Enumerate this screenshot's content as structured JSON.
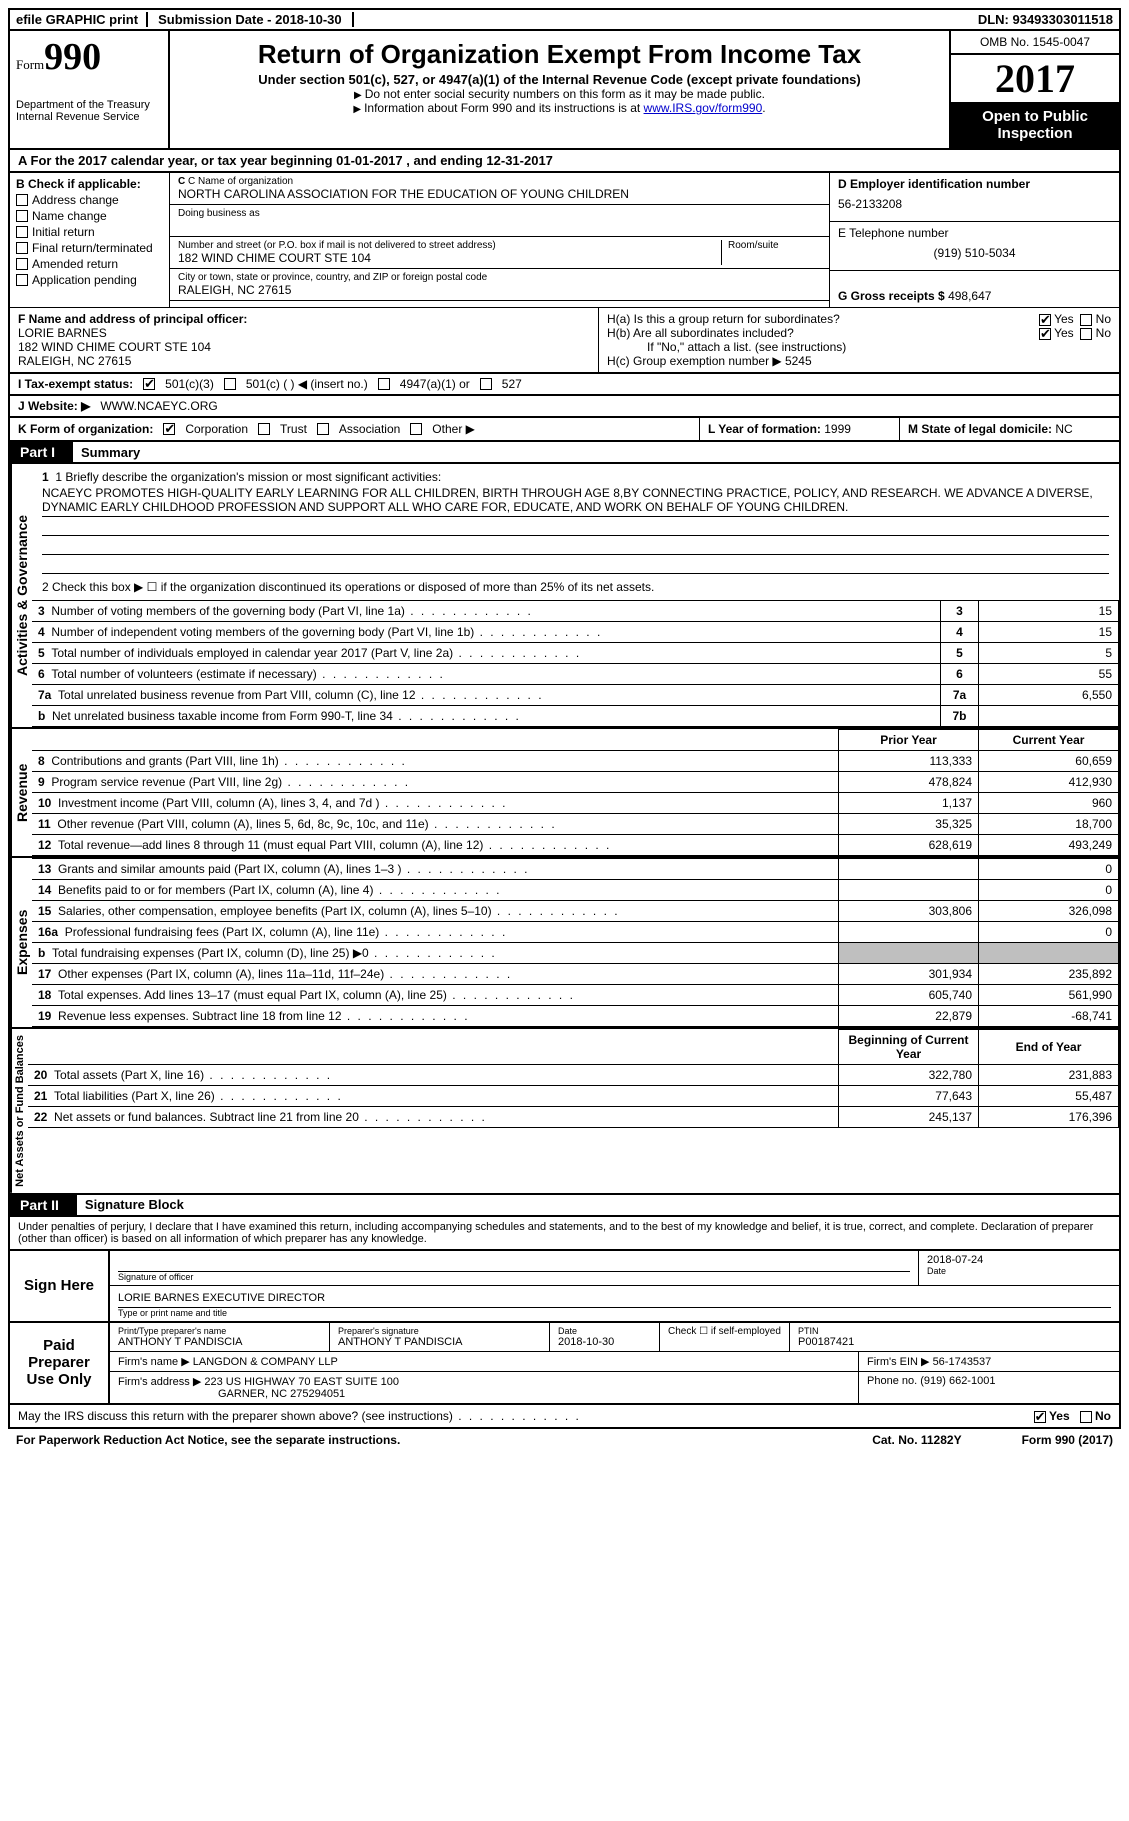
{
  "colors": {
    "black": "#000000",
    "white": "#ffffff",
    "grey": "#bfbfbf",
    "link": "#0000cc"
  },
  "topbar": {
    "efile": "efile GRAPHIC print",
    "submission_label": "Submission Date - ",
    "submission_date": "2018-10-30",
    "dln_label": "DLN: ",
    "dln": "93493303011518"
  },
  "header": {
    "form_label": "Form",
    "form_number": "990",
    "dept1": "Department of the Treasury",
    "dept2": "Internal Revenue Service",
    "title": "Return of Organization Exempt From Income Tax",
    "subtitle": "Under section 501(c), 527, or 4947(a)(1) of the Internal Revenue Code (except private foundations)",
    "note1": "Do not enter social security numbers on this form as it may be made public.",
    "note2_pre": "Information about Form 990 and its instructions is at ",
    "note2_link": "www.IRS.gov/form990",
    "omb": "OMB No. 1545-0047",
    "year": "2017",
    "inspection1": "Open to Public",
    "inspection2": "Inspection"
  },
  "section_a": "A  For the 2017 calendar year, or tax year beginning 01-01-2017   , and ending 12-31-2017",
  "col_b": {
    "title": "B Check if applicable:",
    "items": [
      "Address change",
      "Name change",
      "Initial return",
      "Final return/terminated",
      "Amended return",
      "Application pending"
    ]
  },
  "col_c": {
    "name_label": "C Name of organization",
    "name": "NORTH CAROLINA ASSOCIATION FOR THE EDUCATION OF YOUNG CHILDREN",
    "dba_label": "Doing business as",
    "street_label": "Number and street (or P.O. box if mail is not delivered to street address)",
    "room_label": "Room/suite",
    "street": "182 WIND CHIME COURT STE 104",
    "city_label": "City or town, state or province, country, and ZIP or foreign postal code",
    "city": "RALEIGH, NC  27615"
  },
  "col_d": {
    "ein_label": "D Employer identification number",
    "ein": "56-2133208",
    "phone_label": "E Telephone number",
    "phone": "(919) 510-5034",
    "gross_label": "G Gross receipts $ ",
    "gross": "498,647"
  },
  "officer": {
    "label": "F  Name and address of principal officer:",
    "name": "LORIE BARNES",
    "addr1": "182 WIND CHIME COURT STE 104",
    "addr2": "RALEIGH, NC  27615"
  },
  "h_section": {
    "ha": "H(a)  Is this a group return for subordinates?",
    "hb": "H(b)  Are all subordinates included?",
    "hb_note": "If \"No,\" attach a list. (see instructions)",
    "hc": "H(c)  Group exemption number ▶   5245",
    "yes": "Yes",
    "no": "No"
  },
  "status": {
    "label": "I  Tax-exempt status:",
    "o1": "501(c)(3)",
    "o2": "501(c) (   ) ◀ (insert no.)",
    "o3": "4947(a)(1) or",
    "o4": "527"
  },
  "website": {
    "label": "J  Website: ▶",
    "value": "WWW.NCAEYC.ORG"
  },
  "form_org": {
    "label": "K Form of organization:",
    "opts": [
      "Corporation",
      "Trust",
      "Association",
      "Other ▶"
    ],
    "year_label": "L Year of formation: ",
    "year": "1999",
    "state_label": "M State of legal domicile: ",
    "state": "NC"
  },
  "part1": {
    "tag": "Part I",
    "title": "Summary"
  },
  "summary": {
    "side": "Activities & Governance",
    "q1_label": "1  Briefly describe the organization's mission or most significant activities:",
    "q1_text": "NCAEYC PROMOTES HIGH-QUALITY EARLY LEARNING FOR ALL CHILDREN, BIRTH THROUGH AGE 8,BY CONNECTING PRACTICE, POLICY, AND RESEARCH. WE ADVANCE A DIVERSE, DYNAMIC EARLY CHILDHOOD PROFESSION AND SUPPORT ALL WHO CARE FOR, EDUCATE, AND WORK ON BEHALF OF YOUNG CHILDREN.",
    "q2": "2  Check this box ▶ ☐  if the organization discontinued its operations or disposed of more than 25% of its net assets.",
    "rows": [
      {
        "n": "3",
        "label": "Number of voting members of the governing body (Part VI, line 1a)",
        "box": "3",
        "val": "15"
      },
      {
        "n": "4",
        "label": "Number of independent voting members of the governing body (Part VI, line 1b)",
        "box": "4",
        "val": "15"
      },
      {
        "n": "5",
        "label": "Total number of individuals employed in calendar year 2017 (Part V, line 2a)",
        "box": "5",
        "val": "5"
      },
      {
        "n": "6",
        "label": "Total number of volunteers (estimate if necessary)",
        "box": "6",
        "val": "55"
      },
      {
        "n": "7a",
        "label": "Total unrelated business revenue from Part VIII, column (C), line 12",
        "box": "7a",
        "val": "6,550"
      },
      {
        "n": "b",
        "label": "Net unrelated business taxable income from Form 990-T, line 34",
        "box": "7b",
        "val": ""
      }
    ]
  },
  "revenue": {
    "side": "Revenue",
    "hdr_prior": "Prior Year",
    "hdr_current": "Current Year",
    "rows": [
      {
        "n": "8",
        "label": "Contributions and grants (Part VIII, line 1h)",
        "prior": "113,333",
        "curr": "60,659"
      },
      {
        "n": "9",
        "label": "Program service revenue (Part VIII, line 2g)",
        "prior": "478,824",
        "curr": "412,930"
      },
      {
        "n": "10",
        "label": "Investment income (Part VIII, column (A), lines 3, 4, and 7d )",
        "prior": "1,137",
        "curr": "960"
      },
      {
        "n": "11",
        "label": "Other revenue (Part VIII, column (A), lines 5, 6d, 8c, 9c, 10c, and 11e)",
        "prior": "35,325",
        "curr": "18,700"
      },
      {
        "n": "12",
        "label": "Total revenue—add lines 8 through 11 (must equal Part VIII, column (A), line 12)",
        "prior": "628,619",
        "curr": "493,249"
      }
    ]
  },
  "expenses": {
    "side": "Expenses",
    "rows": [
      {
        "n": "13",
        "label": "Grants and similar amounts paid (Part IX, column (A), lines 1–3 )",
        "prior": "",
        "curr": "0"
      },
      {
        "n": "14",
        "label": "Benefits paid to or for members (Part IX, column (A), line 4)",
        "prior": "",
        "curr": "0"
      },
      {
        "n": "15",
        "label": "Salaries, other compensation, employee benefits (Part IX, column (A), lines 5–10)",
        "prior": "303,806",
        "curr": "326,098"
      },
      {
        "n": "16a",
        "label": "Professional fundraising fees (Part IX, column (A), line 11e)",
        "prior": "",
        "curr": "0"
      },
      {
        "n": "b",
        "label": "Total fundraising expenses (Part IX, column (D), line 25) ▶0",
        "prior": "grey",
        "curr": "grey"
      },
      {
        "n": "17",
        "label": "Other expenses (Part IX, column (A), lines 11a–11d, 11f–24e)",
        "prior": "301,934",
        "curr": "235,892"
      },
      {
        "n": "18",
        "label": "Total expenses. Add lines 13–17 (must equal Part IX, column (A), line 25)",
        "prior": "605,740",
        "curr": "561,990"
      },
      {
        "n": "19",
        "label": "Revenue less expenses. Subtract line 18 from line 12",
        "prior": "22,879",
        "curr": "-68,741"
      }
    ]
  },
  "net": {
    "side": "Net Assets or Fund Balances",
    "hdr_begin": "Beginning of Current Year",
    "hdr_end": "End of Year",
    "rows": [
      {
        "n": "20",
        "label": "Total assets (Part X, line 16)",
        "prior": "322,780",
        "curr": "231,883"
      },
      {
        "n": "21",
        "label": "Total liabilities (Part X, line 26)",
        "prior": "77,643",
        "curr": "55,487"
      },
      {
        "n": "22",
        "label": "Net assets or fund balances. Subtract line 21 from line 20",
        "prior": "245,137",
        "curr": "176,396"
      }
    ]
  },
  "part2": {
    "tag": "Part II",
    "title": "Signature Block"
  },
  "sig": {
    "perjury": "Under penalties of perjury, I declare that I have examined this return, including accompanying schedules and statements, and to the best of my knowledge and belief, it is true, correct, and complete. Declaration of preparer (other than officer) is based on all information of which preparer has any knowledge.",
    "sign_here": "Sign Here",
    "sig_officer": "Signature of officer",
    "date": "Date",
    "date_val": "2018-07-24",
    "name": "LORIE BARNES EXECUTIVE DIRECTOR",
    "name_label": "Type or print name and title",
    "paid": "Paid Preparer Use Only",
    "prep_name_lbl": "Print/Type preparer's name",
    "prep_name": "ANTHONY T PANDISCIA",
    "prep_sig_lbl": "Preparer's signature",
    "prep_sig": "ANTHONY T PANDISCIA",
    "prep_date_lbl": "Date",
    "prep_date": "2018-10-30",
    "check_lbl": "Check ☐ if self-employed",
    "ptin_lbl": "PTIN",
    "ptin": "P00187421",
    "firm_name_lbl": "Firm's name    ▶ ",
    "firm_name": "LANGDON & COMPANY LLP",
    "firm_ein_lbl": "Firm's EIN ▶ ",
    "firm_ein": "56-1743537",
    "firm_addr_lbl": "Firm's address ▶ ",
    "firm_addr1": "223 US HIGHWAY 70 EAST SUITE 100",
    "firm_addr2": "GARNER, NC  275294051",
    "firm_phone_lbl": "Phone no. ",
    "firm_phone": "(919) 662-1001"
  },
  "discuss": {
    "text": "May the IRS discuss this return with the preparer shown above? (see instructions)",
    "yes": "Yes",
    "no": "No"
  },
  "footer": {
    "left": "For Paperwork Reduction Act Notice, see the separate instructions.",
    "mid": "Cat. No. 11282Y",
    "right": "Form 990 (2017)"
  }
}
